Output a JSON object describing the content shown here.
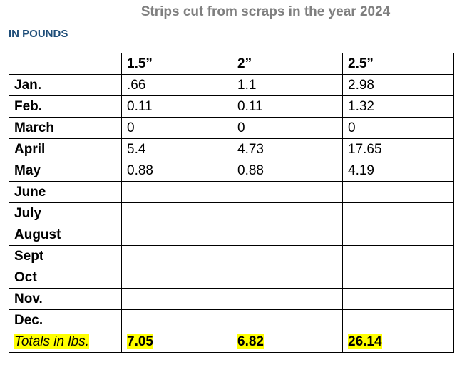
{
  "title": "Strips cut from scraps in the year 2024",
  "subtitle": "IN POUNDS",
  "table": {
    "headers": [
      "",
      "1.5”",
      "2”",
      "2.5”"
    ],
    "rows": [
      {
        "month": "Jan.",
        "values": [
          ".66",
          "1.1",
          "2.98"
        ]
      },
      {
        "month": "Feb.",
        "values": [
          "0.11",
          "0.11",
          "1.32"
        ]
      },
      {
        "month": "March",
        "values": [
          "0",
          "0",
          "0"
        ]
      },
      {
        "month": "April",
        "values": [
          "5.4",
          "4.73",
          "17.65"
        ]
      },
      {
        "month": "May",
        "values": [
          "0.88",
          "0.88",
          "4.19"
        ]
      },
      {
        "month": "June",
        "values": [
          "",
          "",
          ""
        ]
      },
      {
        "month": "July",
        "values": [
          "",
          "",
          ""
        ]
      },
      {
        "month": "August",
        "values": [
          "",
          "",
          ""
        ]
      },
      {
        "month": "Sept",
        "values": [
          "",
          "",
          ""
        ]
      },
      {
        "month": "Oct",
        "values": [
          "",
          "",
          ""
        ]
      },
      {
        "month": "Nov.",
        "values": [
          "",
          "",
          ""
        ]
      },
      {
        "month": "Dec.",
        "values": [
          "",
          "",
          ""
        ]
      }
    ],
    "totals": {
      "label": "Totals in lbs.",
      "values": [
        "7.05",
        "6.82",
        "26.14"
      ]
    }
  },
  "colors": {
    "title": "#7f7f7f",
    "subtitle": "#1f4e79",
    "highlight": "#ffff00",
    "border": "#000000"
  }
}
